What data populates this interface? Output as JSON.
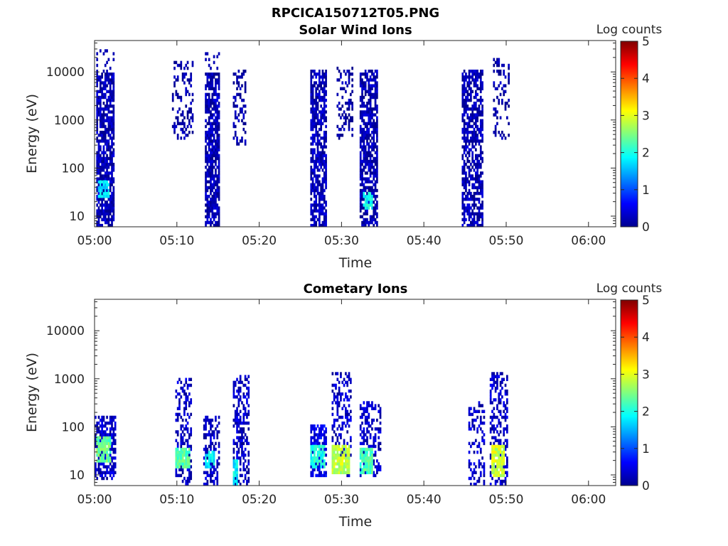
{
  "figure_title": "RPCICA150712T05.PNG",
  "colors": {
    "colormap": [
      "#00008f",
      "#0000ff",
      "#00ffff",
      "#ffff00",
      "#ff0000",
      "#800000"
    ],
    "frame": "#262626",
    "background": "#ffffff"
  },
  "chart_data": [
    {
      "type": "heatmap",
      "title": "Solar Wind Ions",
      "xlabel": "Time",
      "ylabel": "Energy (eV)",
      "x_ticks": [
        "05:00",
        "05:10",
        "05:20",
        "05:30",
        "05:40",
        "05:50",
        "06:00"
      ],
      "x_tick_minutes": [
        0,
        10,
        20,
        30,
        40,
        50,
        60
      ],
      "xlim_minutes": [
        0,
        63.3
      ],
      "y_ticks": [
        "10",
        "100",
        "1000",
        "10000"
      ],
      "y_tick_values": [
        10,
        100,
        1000,
        10000
      ],
      "ylim": [
        6,
        45000
      ],
      "yscale": "log",
      "colorbar": {
        "label": "Log counts",
        "ticks": [
          "0",
          "1",
          "2",
          "3",
          "4",
          "5"
        ],
        "range": [
          0,
          5
        ]
      },
      "bursts": [
        {
          "t_start": 0.2,
          "t_end": 2.3,
          "e_min": 6,
          "e_max": 9000,
          "level": 0.2,
          "density": 0.75,
          "sparse_max": 30000
        },
        {
          "t_start": 0.4,
          "t_end": 1.6,
          "e_min": 25,
          "e_max": 50,
          "level": 1.8,
          "density": 0.7
        },
        {
          "t_start": 9.5,
          "t_end": 11.8,
          "e_min": 400,
          "e_max": 15000,
          "level": 0.1,
          "density": 0.3
        },
        {
          "t_start": 13.4,
          "t_end": 15.2,
          "e_min": 6,
          "e_max": 9000,
          "level": 0.2,
          "density": 0.75,
          "sparse_max": 35000
        },
        {
          "t_start": 16.8,
          "t_end": 18.3,
          "e_min": 300,
          "e_max": 10000,
          "level": 0.1,
          "density": 0.35
        },
        {
          "t_start": 26.3,
          "t_end": 28.0,
          "e_min": 6,
          "e_max": 10000,
          "level": 0.2,
          "density": 0.7
        },
        {
          "t_start": 29.5,
          "t_end": 31.2,
          "e_min": 400,
          "e_max": 12000,
          "level": 0.1,
          "density": 0.3
        },
        {
          "t_start": 32.4,
          "t_end": 34.2,
          "e_min": 6,
          "e_max": 10000,
          "level": 0.2,
          "density": 0.7
        },
        {
          "t_start": 32.6,
          "t_end": 33.6,
          "e_min": 15,
          "e_max": 30,
          "level": 1.9,
          "density": 0.8
        },
        {
          "t_start": 44.8,
          "t_end": 47.0,
          "e_min": 6,
          "e_max": 10000,
          "level": 0.2,
          "density": 0.65
        },
        {
          "t_start": 48.5,
          "t_end": 50.2,
          "e_min": 400,
          "e_max": 18000,
          "level": 0.1,
          "density": 0.3
        }
      ]
    },
    {
      "type": "heatmap",
      "title": "Cometary Ions",
      "xlabel": "Time",
      "ylabel": "Energy (eV)",
      "x_ticks": [
        "05:00",
        "05:10",
        "05:20",
        "05:30",
        "05:40",
        "05:50",
        "06:00"
      ],
      "x_tick_minutes": [
        0,
        10,
        20,
        30,
        40,
        50,
        60
      ],
      "xlim_minutes": [
        0,
        63.3
      ],
      "y_ticks": [
        "10",
        "100",
        "1000",
        "10000"
      ],
      "y_tick_values": [
        10,
        100,
        1000,
        10000
      ],
      "ylim": [
        6,
        45000
      ],
      "yscale": "log",
      "colorbar": {
        "label": "Log counts",
        "ticks": [
          "0",
          "1",
          "2",
          "3",
          "4",
          "5"
        ],
        "range": [
          0,
          5
        ]
      },
      "bursts": [
        {
          "t_start": 0.0,
          "t_end": 2.5,
          "e_min": 8,
          "e_max": 150,
          "level": 0.3,
          "density": 0.6
        },
        {
          "t_start": 0.2,
          "t_end": 1.8,
          "e_min": 20,
          "e_max": 60,
          "level": 2.4,
          "density": 0.8
        },
        {
          "t_start": 9.8,
          "t_end": 11.7,
          "e_min": 6,
          "e_max": 1000,
          "level": 0.3,
          "density": 0.45
        },
        {
          "t_start": 9.9,
          "t_end": 11.5,
          "e_min": 14,
          "e_max": 35,
          "level": 2.3,
          "density": 0.85
        },
        {
          "t_start": 13.3,
          "t_end": 15.0,
          "e_min": 6,
          "e_max": 150,
          "level": 0.3,
          "density": 0.55
        },
        {
          "t_start": 13.4,
          "t_end": 14.4,
          "e_min": 14,
          "e_max": 30,
          "level": 1.8,
          "density": 0.7
        },
        {
          "t_start": 16.8,
          "t_end": 18.6,
          "e_min": 6,
          "e_max": 1100,
          "level": 0.3,
          "density": 0.45
        },
        {
          "t_start": 16.8,
          "t_end": 17.3,
          "e_min": 6,
          "e_max": 20,
          "level": 1.8,
          "density": 0.8
        },
        {
          "t_start": 26.2,
          "t_end": 28.0,
          "e_min": 10,
          "e_max": 100,
          "level": 0.5,
          "density": 0.6
        },
        {
          "t_start": 26.3,
          "t_end": 27.9,
          "e_min": 14,
          "e_max": 40,
          "level": 2.0,
          "density": 0.8
        },
        {
          "t_start": 28.8,
          "t_end": 31.0,
          "e_min": 10,
          "e_max": 1200,
          "level": 0.3,
          "density": 0.4
        },
        {
          "t_start": 28.8,
          "t_end": 30.8,
          "e_min": 12,
          "e_max": 40,
          "level": 2.8,
          "density": 0.9
        },
        {
          "t_start": 32.2,
          "t_end": 34.6,
          "e_min": 10,
          "e_max": 300,
          "level": 0.3,
          "density": 0.45
        },
        {
          "t_start": 32.2,
          "t_end": 33.6,
          "e_min": 12,
          "e_max": 35,
          "level": 2.2,
          "density": 0.85
        },
        {
          "t_start": 45.5,
          "t_end": 47.2,
          "e_min": 6,
          "e_max": 300,
          "level": 0.3,
          "density": 0.35
        },
        {
          "t_start": 48.0,
          "t_end": 50.1,
          "e_min": 6,
          "e_max": 1300,
          "level": 0.3,
          "density": 0.45
        },
        {
          "t_start": 48.3,
          "t_end": 49.7,
          "e_min": 10,
          "e_max": 40,
          "level": 2.9,
          "density": 0.9
        }
      ]
    }
  ]
}
